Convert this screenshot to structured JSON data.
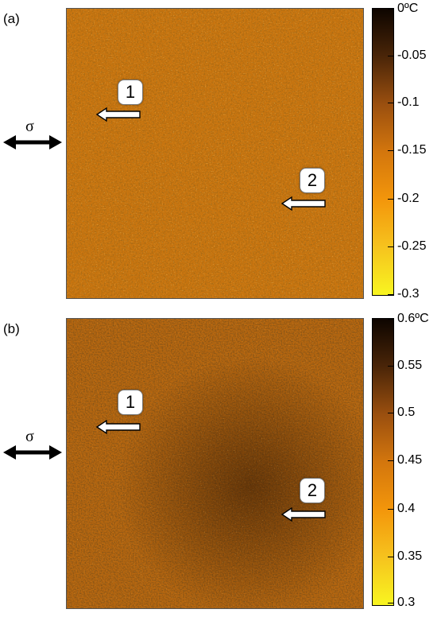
{
  "sigma_symbol": "σ",
  "panels": [
    {
      "label": "(a)",
      "markers": [
        "1",
        "2"
      ],
      "colorbar": {
        "ticks": [
          "0ºC",
          "-0.05",
          "-0.1",
          "-0.15",
          "-0.2",
          "-0.25",
          "-0.3"
        ],
        "colors": [
          "#0d0500",
          "#4a2508",
          "#9a4f0f",
          "#d3760d",
          "#f3960b",
          "#f6c31e",
          "#f8f520"
        ]
      },
      "map_colors": {
        "base": "#c9750f",
        "dark": "#5a2b05",
        "light": "#f2c24a"
      }
    },
    {
      "label": "(b)",
      "markers": [
        "1",
        "2"
      ],
      "colorbar": {
        "ticks": [
          "0.6ºC",
          "0.55",
          "0.5",
          "0.45",
          "0.4",
          "0.35",
          "0.3"
        ],
        "colors": [
          "#0d0500",
          "#4a2508",
          "#9a4f0f",
          "#d3760d",
          "#f3960b",
          "#f6c31e",
          "#f8f520"
        ]
      },
      "map_colors": {
        "base": "#b8670f",
        "dark": "#3e1d03",
        "light": "#efb63c"
      }
    }
  ]
}
